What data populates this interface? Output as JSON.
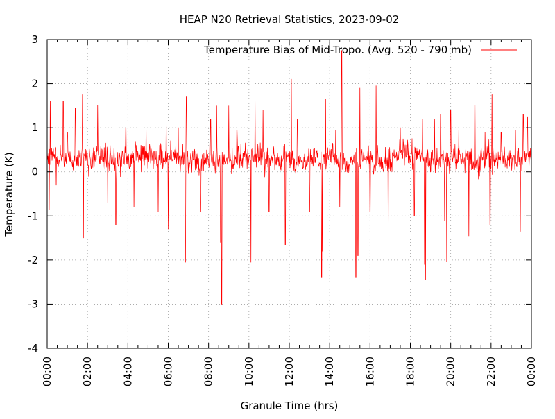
{
  "chart_data": {
    "type": "line",
    "title": "HEAP N20 Retrieval Statistics, 2023-09-02",
    "xlabel": "Granule Time (hrs)",
    "ylabel": "Temperature (K)",
    "xlim": [
      0,
      24
    ],
    "ylim": [
      -4,
      3
    ],
    "x_ticks": [
      "00:00",
      "02:00",
      "04:00",
      "06:00",
      "08:00",
      "10:00",
      "12:00",
      "14:00",
      "16:00",
      "18:00",
      "20:00",
      "22:00",
      "00:00"
    ],
    "y_ticks": [
      "-4",
      "-3",
      "-2",
      "-1",
      "0",
      "1",
      "2",
      "3"
    ],
    "grid": true,
    "legend_position": "top-right",
    "series": [
      {
        "name": "Temperature Bias of Mid-Tropo. (Avg. 520 - 790 mb)",
        "color": "#ff0000",
        "baseline": 0.3,
        "noise_amplitude": 0.35,
        "spikes": [
          [
            0.1,
            -0.85
          ],
          [
            0.15,
            1.6
          ],
          [
            0.45,
            -0.3
          ],
          [
            0.8,
            1.6
          ],
          [
            1.0,
            0.9
          ],
          [
            1.4,
            1.45
          ],
          [
            1.75,
            1.75
          ],
          [
            1.8,
            -1.5
          ],
          [
            2.5,
            1.5
          ],
          [
            3.0,
            -0.7
          ],
          [
            3.4,
            -1.2
          ],
          [
            3.9,
            1.0
          ],
          [
            4.3,
            -0.8
          ],
          [
            4.9,
            1.05
          ],
          [
            5.5,
            -0.9
          ],
          [
            5.9,
            1.2
          ],
          [
            6.0,
            -1.3
          ],
          [
            6.5,
            1.0
          ],
          [
            6.9,
            1.7
          ],
          [
            6.85,
            -2.05
          ],
          [
            7.6,
            -0.9
          ],
          [
            8.1,
            1.2
          ],
          [
            8.4,
            1.5
          ],
          [
            8.6,
            -1.6
          ],
          [
            8.65,
            -3.0
          ],
          [
            9.0,
            1.5
          ],
          [
            9.4,
            0.95
          ],
          [
            10.1,
            -2.05
          ],
          [
            10.3,
            1.65
          ],
          [
            10.7,
            1.4
          ],
          [
            11.0,
            -0.9
          ],
          [
            11.8,
            -1.65
          ],
          [
            12.1,
            2.1
          ],
          [
            12.4,
            1.2
          ],
          [
            13.0,
            -0.9
          ],
          [
            13.6,
            -2.4
          ],
          [
            13.65,
            -1.8
          ],
          [
            13.8,
            1.65
          ],
          [
            14.3,
            0.95
          ],
          [
            14.5,
            -0.8
          ],
          [
            14.6,
            2.75
          ],
          [
            15.3,
            -2.4
          ],
          [
            15.4,
            -1.9
          ],
          [
            15.5,
            1.9
          ],
          [
            16.0,
            -0.9
          ],
          [
            16.3,
            1.95
          ],
          [
            16.9,
            -1.4
          ],
          [
            17.5,
            1.0
          ],
          [
            18.2,
            -1.0
          ],
          [
            18.6,
            1.2
          ],
          [
            18.7,
            -2.1
          ],
          [
            18.75,
            -2.45
          ],
          [
            19.2,
            1.2
          ],
          [
            19.5,
            1.3
          ],
          [
            19.7,
            -1.1
          ],
          [
            19.8,
            -2.05
          ],
          [
            20.0,
            1.4
          ],
          [
            20.4,
            0.95
          ],
          [
            20.9,
            -1.45
          ],
          [
            21.2,
            1.5
          ],
          [
            21.7,
            0.9
          ],
          [
            21.95,
            -1.2
          ],
          [
            22.05,
            1.75
          ],
          [
            22.5,
            0.9
          ],
          [
            23.2,
            0.95
          ],
          [
            23.45,
            -1.35
          ],
          [
            23.6,
            1.3
          ],
          [
            23.8,
            1.25
          ]
        ]
      }
    ]
  }
}
